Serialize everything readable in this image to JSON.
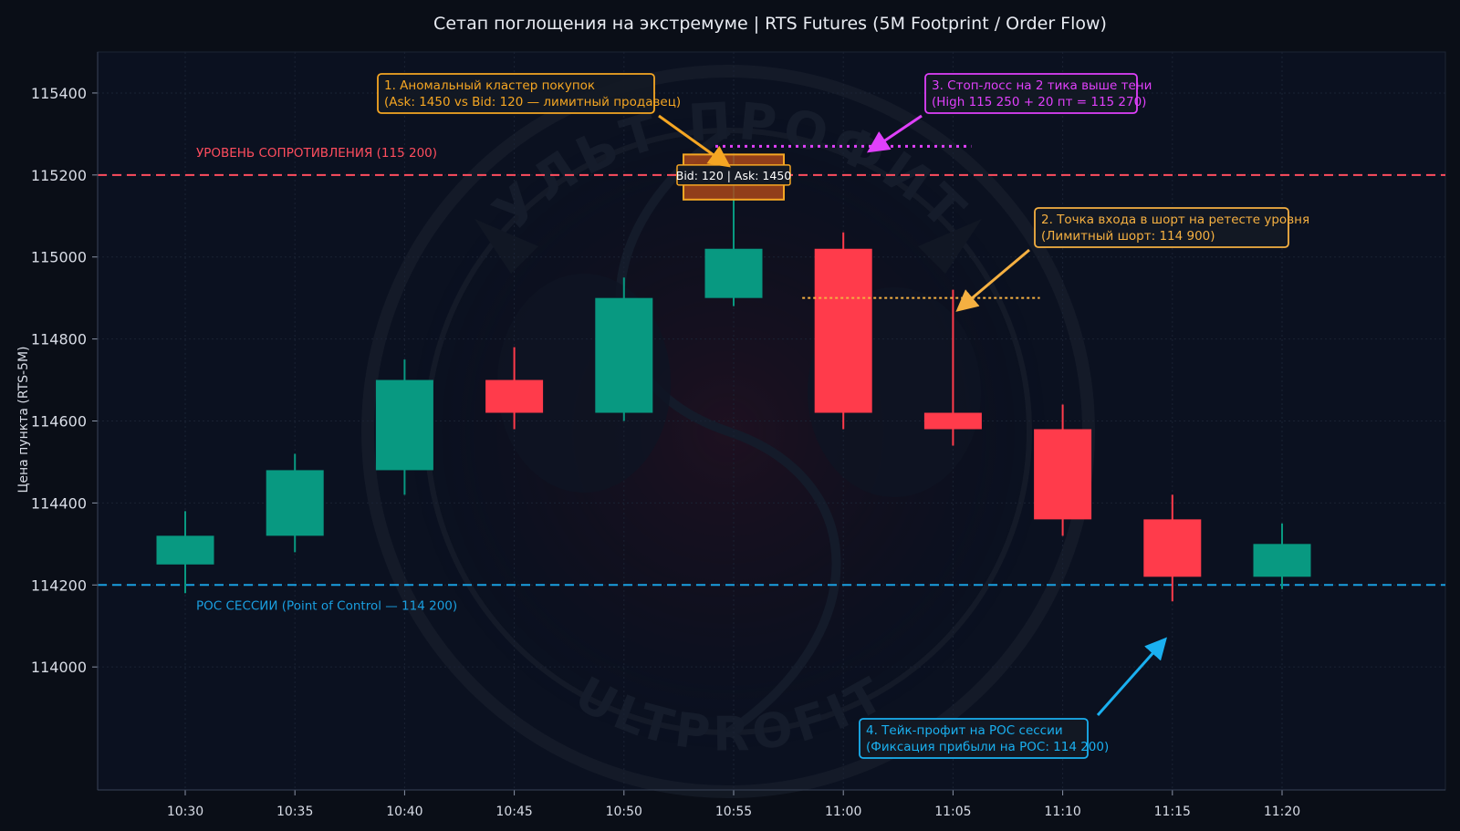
{
  "chart_data": {
    "type": "candlestick",
    "title": "Сетап поглощения на экстремуме | RTS Futures (5M Footprint / Order Flow)",
    "xlabel": "",
    "ylabel": "Цена пункта (RTS-5M)",
    "ylim": [
      113700,
      115500
    ],
    "yticks": [
      114000,
      114200,
      114400,
      114600,
      114800,
      115000,
      115200,
      115400
    ],
    "grid": true,
    "categories": [
      "10:30",
      "10:35",
      "10:40",
      "10:45",
      "10:50",
      "10:55",
      "11:00",
      "11:05",
      "11:10",
      "11:15",
      "11:20"
    ],
    "candles": [
      {
        "time": "10:30",
        "open": 114250,
        "high": 114380,
        "low": 114180,
        "close": 114320
      },
      {
        "time": "10:35",
        "open": 114320,
        "high": 114520,
        "low": 114280,
        "close": 114480
      },
      {
        "time": "10:40",
        "open": 114480,
        "high": 114750,
        "low": 114420,
        "close": 114700
      },
      {
        "time": "10:45",
        "open": 114700,
        "high": 114780,
        "low": 114580,
        "close": 114620
      },
      {
        "time": "10:50",
        "open": 114620,
        "high": 114950,
        "low": 114600,
        "close": 114900
      },
      {
        "time": "10:55",
        "open": 114900,
        "high": 115250,
        "low": 114880,
        "close": 115020
      },
      {
        "time": "11:00",
        "open": 115020,
        "high": 115060,
        "low": 114580,
        "close": 114620
      },
      {
        "time": "11:05",
        "open": 114620,
        "high": 114920,
        "low": 114540,
        "close": 114580
      },
      {
        "time": "11:10",
        "open": 114580,
        "high": 114640,
        "low": 114320,
        "close": 114360
      },
      {
        "time": "11:15",
        "open": 114360,
        "high": 114420,
        "low": 114160,
        "close": 114220
      },
      {
        "time": "11:20",
        "open": 114220,
        "high": 114350,
        "low": 114190,
        "close": 114300
      }
    ],
    "levels": [
      {
        "name": "resistance",
        "price": 115200,
        "label": "УРОВЕНЬ СОПРОТИВЛЕНИЯ (115 200)",
        "color": "#ff4d5e"
      },
      {
        "name": "poc",
        "price": 114200,
        "label": "POC СЕССИИ (Point of Control — 114 200)",
        "color": "#1a9fe0"
      }
    ],
    "cluster": {
      "time": "10:55",
      "price_low": 115140,
      "price_high": 115250,
      "label": "Bid: 120  |  Ask: 1450"
    },
    "stop_line": {
      "price": 115270,
      "from_time": "10:55",
      "to_time": "11:05"
    },
    "entry_line": {
      "price": 114900,
      "from_time": "11:00",
      "to_time": "11:10"
    },
    "annotations": [
      {
        "id": "a1",
        "lines": [
          "1. Аномальный кластер покупок",
          "(Ask: 1450 vs Bid: 120 — лимитный продавец)"
        ],
        "color": "#f5a623"
      },
      {
        "id": "a2",
        "lines": [
          "2. Точка входа в шорт на ретесте уровня",
          "(Лимитный шорт: 114 900)"
        ],
        "color": "#f5b041"
      },
      {
        "id": "a3",
        "lines": [
          "3. Стоп-лосс на 2 тика выше тени",
          "(High 115 250 + 20 пт = 115 270)"
        ],
        "color": "#e040fb"
      },
      {
        "id": "a4",
        "lines": [
          "4. Тейк-профит на POC сессии",
          "(Фиксация прибыли на POC: 114 200)"
        ],
        "color": "#1ab0f0"
      }
    ],
    "watermark": {
      "top_text": "КУЛЬТ ПРОФИТА",
      "bottom_text": "KULTPROFITA"
    }
  },
  "colors": {
    "background": "#0a0e17",
    "plot_background": "#0b1120",
    "bull": "#089981",
    "bear": "#ff3b4b",
    "grid": "#1a2233",
    "axis_text": "#d8dce6"
  }
}
